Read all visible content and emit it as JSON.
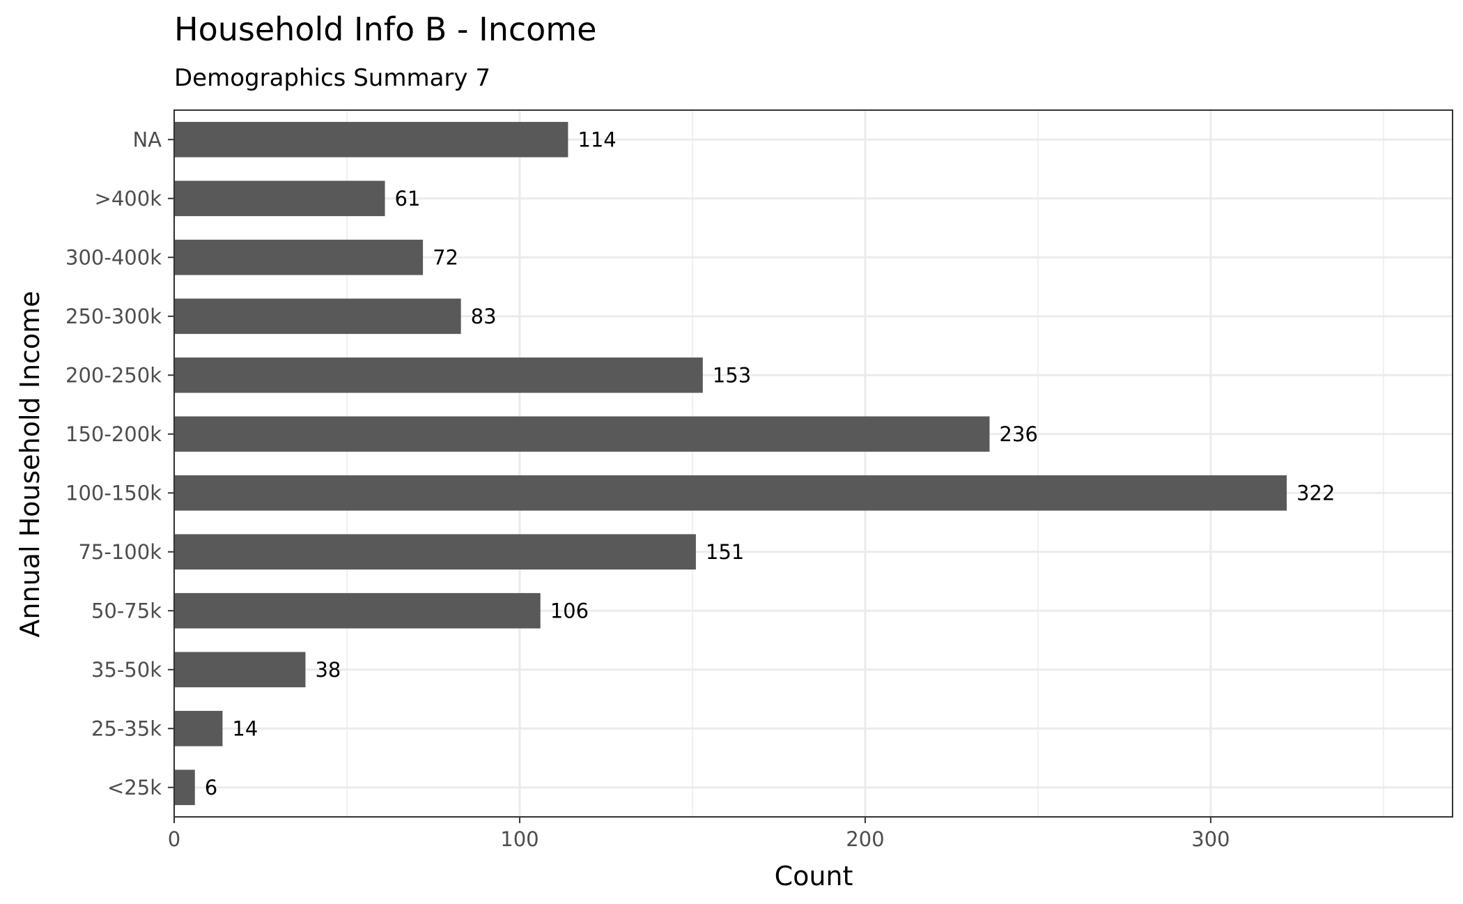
{
  "chart_data": {
    "type": "bar",
    "orientation": "horizontal",
    "title": "Household Info B - Income",
    "subtitle": "Demographics Summary 7",
    "xlabel": "Count",
    "ylabel": "Annual Household Income",
    "categories": [
      "<25k",
      "25-35k",
      "35-50k",
      "50-75k",
      "75-100k",
      "100-150k",
      "150-200k",
      "200-250k",
      "250-300k",
      "300-400k",
      ">400k",
      "NA"
    ],
    "values": [
      6,
      14,
      38,
      106,
      151,
      322,
      236,
      153,
      83,
      72,
      61,
      114
    ],
    "xlim": [
      0,
      370
    ],
    "xticks": [
      "0",
      "100",
      "200",
      "300"
    ],
    "grid": true,
    "legend": "none",
    "bar_color": "#595959",
    "grid_color": "#ebebeb",
    "panel_border_color": "#333333"
  }
}
